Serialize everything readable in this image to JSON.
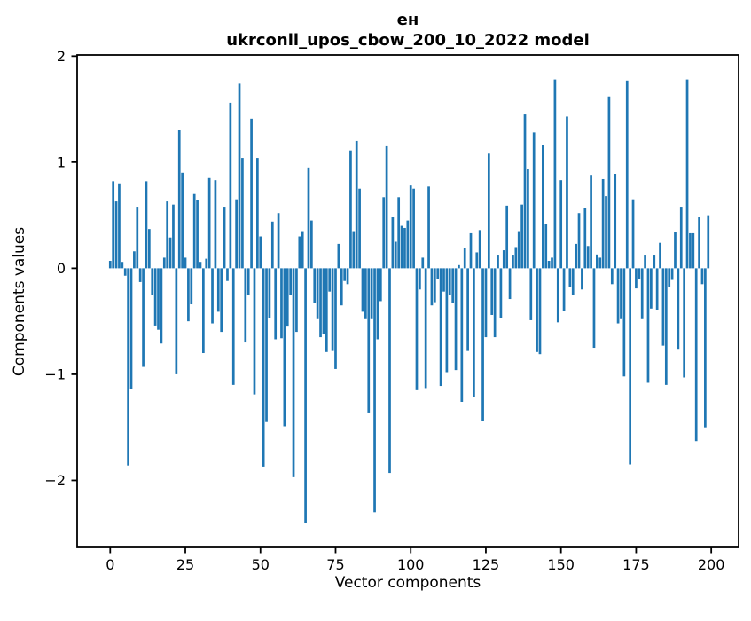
{
  "figure": {
    "title_line1": "ен",
    "title_line2": "ukrconll_upos_cbow_200_10_2022 model",
    "xlabel": "Vector components",
    "ylabel": "Components values"
  },
  "chart_data": {
    "type": "bar",
    "title": "ен\nukrconll_upos_cbow_200_10_2022 model",
    "xlabel": "Vector components",
    "ylabel": "Components values",
    "bar_color": "#1f77b4",
    "axis_color": "#000000",
    "background_color": "#ffffff",
    "grid": false,
    "legend": false,
    "bar_width_data_units": 0.8,
    "xlim": [
      -11.0,
      209.1
    ],
    "ylim": [
      -2.632,
      2.011
    ],
    "x_ticks": [
      0,
      25,
      50,
      75,
      100,
      125,
      150,
      175,
      200
    ],
    "x_tick_labels": [
      "0",
      "25",
      "50",
      "75",
      "100",
      "125",
      "150",
      "175",
      "200"
    ],
    "y_ticks": [
      2,
      1,
      0,
      -1,
      -2
    ],
    "y_tick_labels": [
      "2",
      "1",
      "0",
      "−1",
      "−2"
    ],
    "x": "index 0..199",
    "values": [
      0.07,
      0.82,
      0.63,
      0.8,
      0.06,
      -0.07,
      -1.86,
      -1.14,
      0.16,
      0.58,
      -0.13,
      -0.93,
      0.82,
      0.37,
      -0.25,
      -0.54,
      -0.58,
      -0.71,
      0.1,
      0.63,
      0.29,
      0.6,
      -1.0,
      1.3,
      0.9,
      0.1,
      -0.5,
      -0.34,
      0.7,
      0.64,
      0.06,
      -0.8,
      0.09,
      0.85,
      -0.52,
      0.83,
      -0.41,
      -0.6,
      0.58,
      -0.12,
      1.56,
      -1.1,
      0.65,
      1.74,
      1.04,
      -0.7,
      -0.25,
      1.41,
      -1.19,
      1.04,
      0.3,
      -1.87,
      -1.45,
      -0.47,
      0.44,
      -0.67,
      0.52,
      -0.66,
      -1.49,
      -0.55,
      -0.25,
      -1.97,
      -0.6,
      0.3,
      0.35,
      -2.4,
      0.95,
      0.45,
      -0.33,
      -0.48,
      -0.65,
      -0.62,
      -0.79,
      -0.22,
      -0.78,
      -0.95,
      0.23,
      -0.35,
      -0.12,
      -0.15,
      1.11,
      0.35,
      1.2,
      0.75,
      -0.41,
      -0.48,
      -1.36,
      -0.48,
      -2.3,
      -0.67,
      -0.31,
      0.67,
      1.15,
      -1.93,
      0.48,
      0.25,
      0.67,
      0.4,
      0.38,
      0.45,
      0.78,
      0.75,
      -1.15,
      -0.2,
      0.1,
      -1.13,
      0.77,
      -0.35,
      -0.32,
      -0.1,
      -1.11,
      -0.22,
      -0.98,
      -0.25,
      -0.33,
      -0.96,
      0.03,
      -1.26,
      0.19,
      -0.78,
      0.33,
      -1.21,
      0.15,
      0.36,
      -1.44,
      -0.65,
      1.08,
      -0.44,
      -0.65,
      0.12,
      -0.47,
      0.17,
      0.59,
      -0.29,
      0.12,
      0.2,
      0.35,
      0.6,
      1.45,
      0.94,
      -0.49,
      1.28,
      -0.79,
      -0.81,
      1.16,
      0.42,
      0.07,
      0.1,
      1.78,
      -0.51,
      0.83,
      -0.4,
      1.43,
      -0.18,
      -0.25,
      0.23,
      0.52,
      -0.2,
      0.57,
      0.21,
      0.88,
      -0.75,
      0.13,
      0.1,
      0.84,
      0.68,
      1.62,
      -0.15,
      0.89,
      -0.52,
      -0.48,
      -1.02,
      1.77,
      -1.85,
      0.65,
      -0.19,
      -0.1,
      -0.48,
      0.12,
      -1.08,
      -0.38,
      0.12,
      -0.39,
      0.24,
      -0.73,
      -1.1,
      -0.18,
      -0.11,
      0.34,
      -0.76,
      0.58,
      -1.03,
      1.78,
      0.33,
      0.33,
      -1.63,
      0.48,
      -0.15,
      -1.5,
      0.5
    ]
  }
}
